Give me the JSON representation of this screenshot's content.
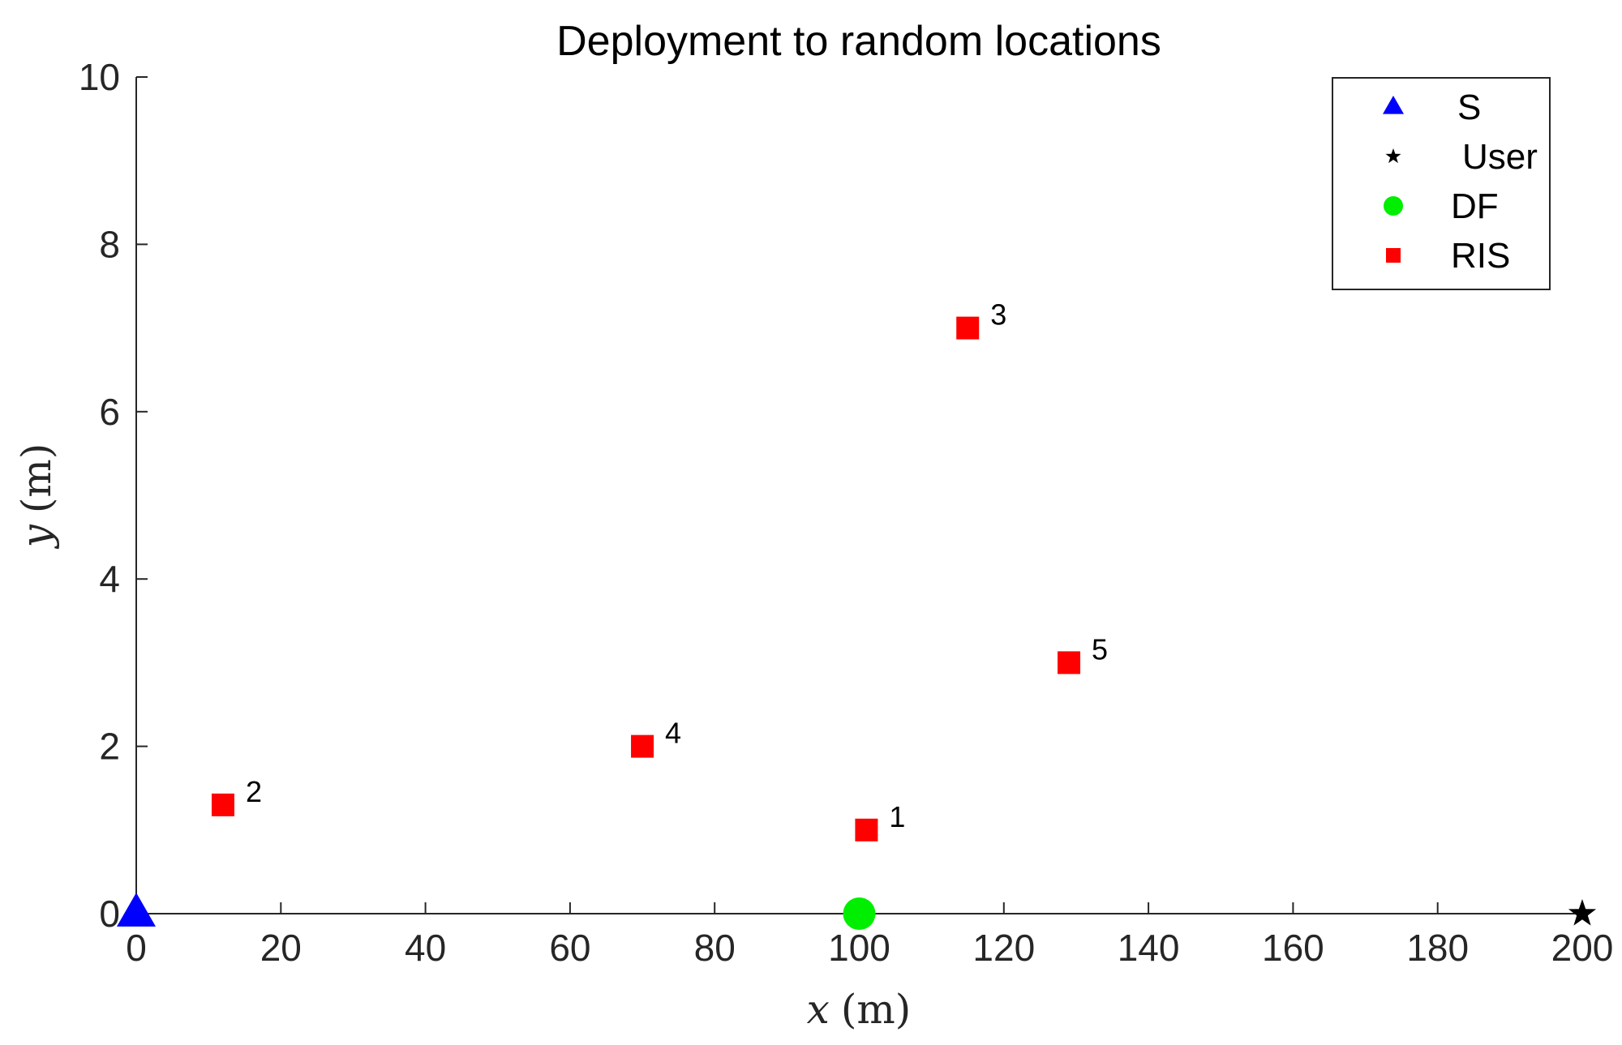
{
  "chart_data": {
    "type": "scatter",
    "title": "Deployment to random locations",
    "xlabel": "x",
    "xunit": "(m)",
    "ylabel": "y",
    "yunit": "(m)",
    "xlim": [
      0,
      200
    ],
    "ylim": [
      0,
      10
    ],
    "xticks": [
      "0",
      "20",
      "40",
      "60",
      "80",
      "100",
      "120",
      "140",
      "160",
      "180",
      "200"
    ],
    "yticks": [
      "0",
      "2",
      "4",
      "6",
      "8",
      "10"
    ],
    "grid": false,
    "legend_position": "top-right",
    "series": [
      {
        "name": "S",
        "marker": "triangle",
        "color": "#0000ff",
        "points": [
          {
            "x": 0,
            "y": 0
          }
        ]
      },
      {
        "name": "User",
        "marker": "star",
        "color": "#000000",
        "points": [
          {
            "x": 200,
            "y": 0
          }
        ]
      },
      {
        "name": "DF",
        "marker": "circle",
        "color": "#00ee00",
        "points": [
          {
            "x": 100,
            "y": 0
          }
        ]
      },
      {
        "name": "RIS",
        "marker": "square",
        "color": "#ff0000",
        "points": [
          {
            "x": 101,
            "y": 1.0,
            "label": "1"
          },
          {
            "x": 12,
            "y": 1.3,
            "label": "2"
          },
          {
            "x": 115,
            "y": 7.0,
            "label": "3"
          },
          {
            "x": 70,
            "y": 2.0,
            "label": "4"
          },
          {
            "x": 129,
            "y": 3.0,
            "label": "5"
          }
        ]
      }
    ]
  }
}
